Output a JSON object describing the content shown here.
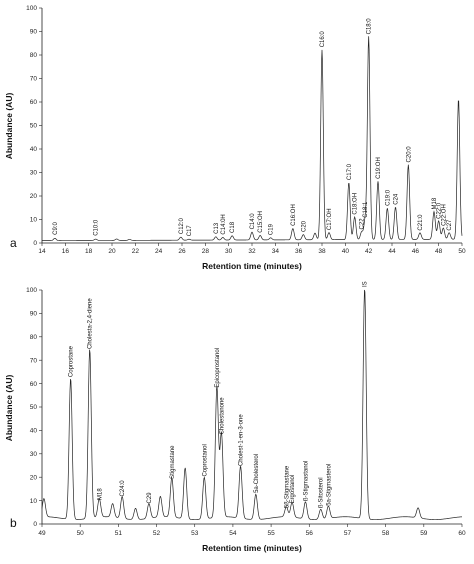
{
  "chart_data": [
    {
      "type": "line",
      "panel_label": "a",
      "xlabel": "Retention time (minutes)",
      "ylabel": "Abundance (AU)",
      "xlim": [
        14,
        50
      ],
      "ylim": [
        0,
        100
      ],
      "x_ticks": [
        14,
        16,
        18,
        20,
        22,
        24,
        26,
        28,
        30,
        32,
        34,
        36,
        38,
        40,
        42,
        44,
        46,
        48,
        50
      ],
      "y_ticks": [
        0,
        10,
        20,
        30,
        40,
        50,
        60,
        70,
        80,
        90,
        100
      ],
      "peaks": [
        {
          "x": 15.1,
          "y": 2.2,
          "label": "C9:0"
        },
        {
          "x": 18.6,
          "y": 1.8,
          "label": "C10:0"
        },
        {
          "x": 20.4,
          "y": 1.8,
          "label": ""
        },
        {
          "x": 21.5,
          "y": 1.6,
          "label": ""
        },
        {
          "x": 25.9,
          "y": 2.5,
          "label": "C12:0"
        },
        {
          "x": 26.6,
          "y": 1.6,
          "label": "C17"
        },
        {
          "x": 28.9,
          "y": 2.6,
          "label": "C13"
        },
        {
          "x": 29.5,
          "y": 2.3,
          "label": "C14:0H"
        },
        {
          "x": 30.3,
          "y": 3.0,
          "label": "C18"
        },
        {
          "x": 32.0,
          "y": 4.5,
          "label": "C14:0"
        },
        {
          "x": 32.7,
          "y": 3.1,
          "label": "C15:OH"
        },
        {
          "x": 33.6,
          "y": 2.1,
          "label": "C19"
        },
        {
          "x": 35.5,
          "y": 6.0,
          "label": "C16:OH"
        },
        {
          "x": 36.4,
          "y": 3.4,
          "label": "C20"
        },
        {
          "x": 37.4,
          "y": 4.0,
          "label": ""
        },
        {
          "x": 38.0,
          "y": 82,
          "label": "C16:0"
        },
        {
          "x": 38.6,
          "y": 4.2,
          "label": "C17:OH"
        },
        {
          "x": 40.3,
          "y": 25.5,
          "label": "C17:0"
        },
        {
          "x": 40.8,
          "y": 10.8,
          "label": "C18:OH"
        },
        {
          "x": 41.4,
          "y": 4.5,
          "label": "C22"
        },
        {
          "x": 41.7,
          "y": 9.5,
          "label": "C18:1"
        },
        {
          "x": 42.0,
          "y": 87.5,
          "label": "C18:0"
        },
        {
          "x": 42.8,
          "y": 26.0,
          "label": "C19:OH"
        },
        {
          "x": 43.6,
          "y": 14.5,
          "label": "C19:0"
        },
        {
          "x": 44.3,
          "y": 15.0,
          "label": "C24"
        },
        {
          "x": 45.4,
          "y": 33.0,
          "label": "C20:0"
        },
        {
          "x": 46.4,
          "y": 4.0,
          "label": "C21:0"
        },
        {
          "x": 47.6,
          "y": 13.0,
          "label": "M18"
        },
        {
          "x": 48.0,
          "y": 9.0,
          "label": "C22:0"
        },
        {
          "x": 48.4,
          "y": 6.0,
          "label": "C22:OH"
        },
        {
          "x": 48.9,
          "y": 4.0,
          "label": "C27"
        },
        {
          "x": 49.7,
          "y": 61,
          "label": ""
        }
      ]
    },
    {
      "type": "line",
      "panel_label": "b",
      "xlabel": "Retention time (minutes)",
      "ylabel": "Abundance (AU)",
      "xlim": [
        49,
        60
      ],
      "ylim": [
        0,
        100
      ],
      "x_ticks": [
        49,
        50,
        51,
        52,
        53,
        54,
        55,
        56,
        57,
        58,
        59,
        60
      ],
      "y_ticks": [
        0,
        10,
        20,
        30,
        40,
        50,
        60,
        70,
        80,
        90,
        100
      ],
      "peaks": [
        {
          "x": 49.05,
          "y": 9,
          "label": ""
        },
        {
          "x": 49.75,
          "y": 61.5,
          "label": "Coprostane"
        },
        {
          "x": 50.25,
          "y": 73.5,
          "label": "Cholesta-2,4-diene"
        },
        {
          "x": 50.5,
          "y": 9,
          "label": "M18"
        },
        {
          "x": 50.85,
          "y": 7,
          "label": ""
        },
        {
          "x": 51.1,
          "y": 10.5,
          "label": "C24:0"
        },
        {
          "x": 51.45,
          "y": 6,
          "label": ""
        },
        {
          "x": 51.8,
          "y": 7.5,
          "label": "C29"
        },
        {
          "x": 52.1,
          "y": 10,
          "label": ""
        },
        {
          "x": 52.4,
          "y": 18,
          "label": "Stigmastane"
        },
        {
          "x": 52.75,
          "y": 23,
          "label": ""
        },
        {
          "x": 53.25,
          "y": 19,
          "label": "Coprostanol"
        },
        {
          "x": 53.58,
          "y": 57,
          "label": "Epicoprostanol"
        },
        {
          "x": 53.7,
          "y": 37,
          "label": "Cholestanone"
        },
        {
          "x": 54.2,
          "y": 23.5,
          "label": "Cholest-1-en-3-one"
        },
        {
          "x": 54.6,
          "y": 12,
          "label": "5a-Cholesterol"
        },
        {
          "x": 55.4,
          "y": 5.5,
          "label": "5ß-Stigmastane"
        },
        {
          "x": 55.55,
          "y": 7.5,
          "label": "Ergostanol"
        },
        {
          "x": 55.9,
          "y": 8.5,
          "label": "ß-Stigmastanol"
        },
        {
          "x": 56.3,
          "y": 5.5,
          "label": "ß-Sitosterol"
        },
        {
          "x": 56.5,
          "y": 6.5,
          "label": "5a-Stigmasterol"
        },
        {
          "x": 57.45,
          "y": 100,
          "label": "IS"
        },
        {
          "x": 58.85,
          "y": 5.5,
          "label": ""
        }
      ]
    }
  ]
}
